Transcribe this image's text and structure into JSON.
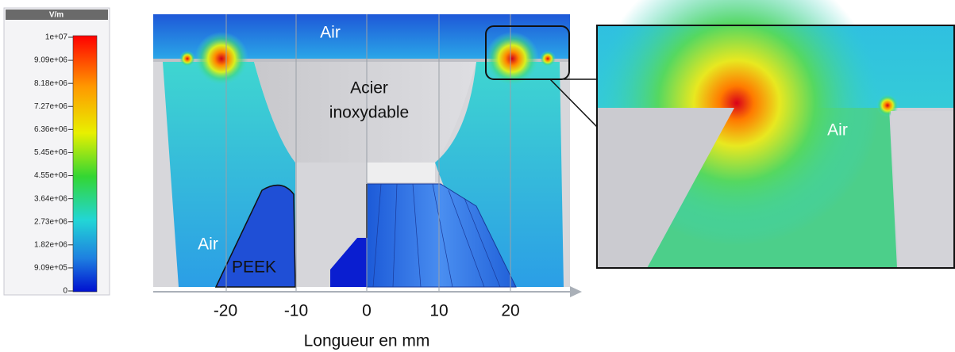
{
  "colorbar": {
    "unit": "V/m",
    "labels": [
      "1e+07",
      "9.09e+06",
      "8.18e+06",
      "7.27e+06",
      "6.36e+06",
      "5.45e+06",
      "4.55e+06",
      "3.64e+06",
      "2.73e+06",
      "1.82e+06",
      "9.09e+05",
      "0"
    ]
  },
  "plot": {
    "regions": {
      "air_top": "Air",
      "steel_line1": "Acier",
      "steel_line2": "inoxydable",
      "air_left": "Air",
      "peek": "PEEK"
    },
    "axis": {
      "ticks": [
        "-20",
        "-10",
        "0",
        "10",
        "20"
      ],
      "label": "Longueur en mm"
    }
  },
  "zoom": {
    "air": "Air"
  }
}
